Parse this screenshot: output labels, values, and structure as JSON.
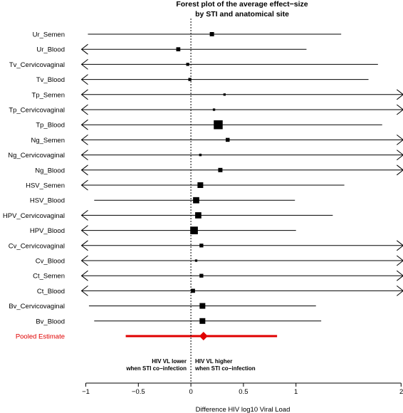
{
  "chart_data": {
    "type": "forest",
    "title": [
      "Forest plot of the average effect−size",
      "by STI and anatomical site"
    ],
    "xlabel": "Difference HIV log10 Viral Load",
    "xlim": [
      -1,
      2
    ],
    "ticks": [
      -1,
      -0.5,
      0,
      0.5,
      1,
      2
    ],
    "tick_labels": [
      "−1",
      "−0.5",
      "0",
      "0.5",
      "1",
      "2"
    ],
    "reference_line": 0,
    "annotations": {
      "left": [
        "HIV VL lower",
        "when STI co−infection"
      ],
      "right": [
        "HIV VL higher",
        "when STI co−infection"
      ]
    },
    "rows": [
      {
        "label": "Ur_Semen",
        "est": 0.2,
        "lo": -0.98,
        "hi": 1.43,
        "weight": 0.35
      },
      {
        "label": "Ur_Blood",
        "est": -0.12,
        "lo": -1.05,
        "hi": 1.1,
        "weight": 0.32
      },
      {
        "label": "Tv_Cervicovaginal",
        "est": -0.03,
        "lo": -1.05,
        "hi": 1.78,
        "weight": 0.18
      },
      {
        "label": "Tv_Blood",
        "est": -0.01,
        "lo": -1.05,
        "hi": 1.69,
        "weight": 0.18
      },
      {
        "label": "Tp_Semen",
        "est": 0.32,
        "lo": -1.05,
        "hi": 2.1,
        "weight": 0.08
      },
      {
        "label": "Tp_Cervicovaginal",
        "est": 0.22,
        "lo": -1.05,
        "hi": 2.1,
        "weight": 0.08
      },
      {
        "label": "Tp_Blood",
        "est": 0.26,
        "lo": -1.05,
        "hi": 1.82,
        "weight": 1.0
      },
      {
        "label": "Ng_Semen",
        "est": 0.35,
        "lo": -1.05,
        "hi": 2.1,
        "weight": 0.3
      },
      {
        "label": "Ng_Cervicovaginal",
        "est": 0.09,
        "lo": -1.05,
        "hi": 2.1,
        "weight": 0.1
      },
      {
        "label": "Ng_Blood",
        "est": 0.28,
        "lo": -1.05,
        "hi": 2.1,
        "weight": 0.35
      },
      {
        "label": "HSV_Semen",
        "est": 0.09,
        "lo": -1.05,
        "hi": 1.46,
        "weight": 0.55
      },
      {
        "label": "HSV_Blood",
        "est": 0.05,
        "lo": -0.92,
        "hi": 0.99,
        "weight": 0.62
      },
      {
        "label": "HPV_Cervicovaginal",
        "est": 0.07,
        "lo": -1.05,
        "hi": 1.35,
        "weight": 0.62
      },
      {
        "label": "HPV_Blood",
        "est": 0.03,
        "lo": -1.05,
        "hi": 1.0,
        "weight": 0.82
      },
      {
        "label": "Cv_Cervicovaginal",
        "est": 0.1,
        "lo": -1.05,
        "hi": 2.1,
        "weight": 0.28
      },
      {
        "label": "Cv_Blood",
        "est": 0.05,
        "lo": -1.05,
        "hi": 2.1,
        "weight": 0.08
      },
      {
        "label": "Ct_Semen",
        "est": 0.1,
        "lo": -1.05,
        "hi": 2.1,
        "weight": 0.28
      },
      {
        "label": "Ct_Blood",
        "est": 0.02,
        "lo": -1.05,
        "hi": 2.1,
        "weight": 0.32
      },
      {
        "label": "Bv_Cervicovaginal",
        "est": 0.11,
        "lo": -0.97,
        "hi": 1.19,
        "weight": 0.55
      },
      {
        "label": "Bv_Blood",
        "est": 0.11,
        "lo": -0.92,
        "hi": 1.24,
        "weight": 0.55
      }
    ],
    "pooled": {
      "label": "Pooled Estimate",
      "est": 0.12,
      "lo": -0.62,
      "hi": 0.82
    },
    "colors": {
      "row": "#000000",
      "pooled": "#e00000"
    }
  }
}
